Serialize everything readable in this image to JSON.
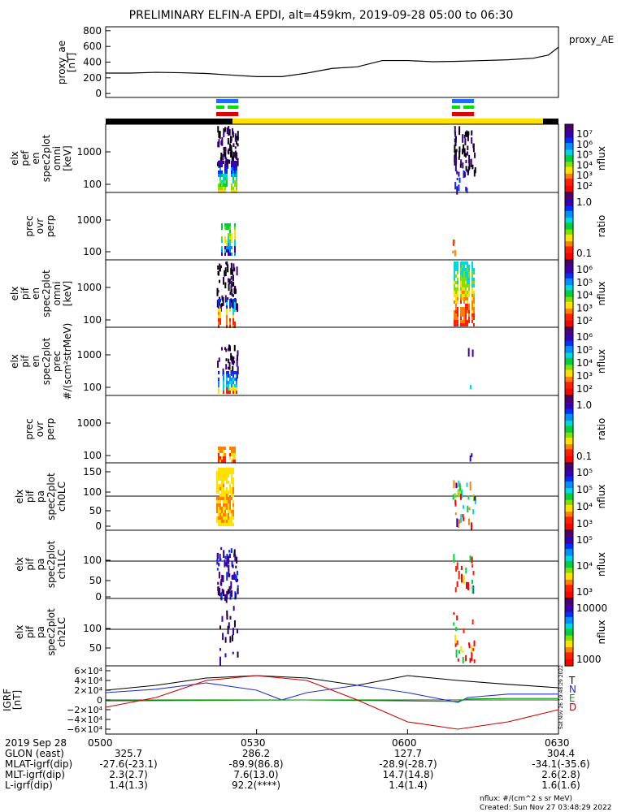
{
  "title": "PRELIMINARY ELFIN-A EPDI, alt=459km, 2019-09-28 05:00 to 06:30",
  "colors": {
    "yellow": "#ffe000",
    "blue": "#1e6cff",
    "green": "#00e000",
    "red": "#e00000",
    "black": "#000000"
  },
  "chart_data": [
    {
      "type": "line",
      "panel": "proxy_ae",
      "ylabel_lines": [
        "proxy_ae",
        "[nT]"
      ],
      "legend": "proxy_AE",
      "yticks": [
        "800",
        "600",
        "400",
        "200",
        "0"
      ],
      "ylim": [
        -50,
        850
      ],
      "xlim": [
        0,
        90
      ],
      "series": [
        {
          "x": [
            0,
            5,
            10,
            15,
            20,
            25,
            30,
            35,
            40,
            45,
            50,
            55,
            60,
            65,
            70,
            75,
            80,
            85,
            88,
            90
          ],
          "values": [
            260,
            260,
            270,
            265,
            255,
            235,
            215,
            215,
            260,
            320,
            340,
            420,
            420,
            405,
            410,
            420,
            430,
            450,
            490,
            590
          ]
        }
      ]
    },
    {
      "type": "heatmap",
      "panel": "elx_pef_en_spec2plot_omni",
      "ylabel_lines": [
        "elx",
        "pef",
        "en",
        "spec2plot",
        "omni",
        "[keV]"
      ],
      "yticks": [
        "1000",
        "100"
      ],
      "colorbar": {
        "label": "nflux",
        "ticks": [
          "10⁷",
          "10⁶",
          "10⁵",
          "10⁴",
          "10³",
          "10²"
        ]
      }
    },
    {
      "type": "heatmap",
      "panel": "prec_ovr_perp_e",
      "ylabel_lines": [
        "prec",
        "ovr",
        "perp"
      ],
      "yticks": [
        "1000",
        "100"
      ],
      "colorbar": {
        "label": "ratio",
        "ticks": [
          "1.0",
          "0.1"
        ]
      }
    },
    {
      "type": "heatmap",
      "panel": "elx_pif_en_spec2plot_omni",
      "ylabel_lines": [
        "elx",
        "pif",
        "en",
        "spec2plot",
        "omni",
        "[keV]"
      ],
      "yticks": [
        "1000",
        "100"
      ],
      "colorbar": {
        "label": "nflux",
        "ticks": [
          "10⁶",
          "10⁵",
          "10⁴",
          "10³",
          "10²"
        ]
      }
    },
    {
      "type": "heatmap",
      "panel": "elx_pif_en_spec2plot_prec",
      "ylabel_lines": [
        "elx",
        "pif",
        "en",
        "spec2plot",
        "prec",
        "#/(scm²strMeV)"
      ],
      "yticks": [
        "1000",
        "100"
      ],
      "colorbar": {
        "label": "nflux",
        "ticks": [
          "10⁶",
          "10⁵",
          "10⁴",
          "10³",
          "10²"
        ]
      }
    },
    {
      "type": "heatmap",
      "panel": "prec_ovr_perp_i",
      "ylabel_lines": [
        "prec",
        "ovr",
        "perp"
      ],
      "yticks": [
        "1000",
        "100"
      ],
      "colorbar": {
        "label": "ratio",
        "ticks": [
          "1.0",
          "0.1"
        ]
      }
    },
    {
      "type": "heatmap",
      "panel": "elx_pif_pa_spec2plot_ch0LC",
      "ylabel_lines": [
        "elx",
        "pif",
        "pa",
        "spec2plot",
        "ch0LC"
      ],
      "yticks": [
        "150",
        "100",
        "50",
        "0"
      ],
      "colorbar": {
        "label": "nflux",
        "ticks": [
          "10⁵",
          "10⁵",
          "10⁴",
          "10³"
        ]
      }
    },
    {
      "type": "heatmap",
      "panel": "elx_pif_pa_spec2plot_ch1LC",
      "ylabel_lines": [
        "elx",
        "pif",
        "pa",
        "spec2plot",
        "ch1LC"
      ],
      "yticks": [
        "100",
        "50",
        "0"
      ],
      "colorbar": {
        "label": "nflux",
        "ticks": [
          "10⁵",
          "10⁴",
          "10³"
        ]
      }
    },
    {
      "type": "heatmap",
      "panel": "elx_pif_pa_spec2plot_ch2LC",
      "ylabel_lines": [
        "elx",
        "pif",
        "pa",
        "spec2plot",
        "ch2LC"
      ],
      "yticks": [
        "100",
        "50"
      ],
      "colorbar": {
        "label": "nflux",
        "ticks": [
          "10000",
          "1000"
        ]
      }
    },
    {
      "type": "line",
      "panel": "IGRF",
      "ylabel_lines": [
        "IGRF",
        "[nT]"
      ],
      "yticks": [
        "6×10⁴",
        "4×10⁴",
        "2×10⁴",
        "0",
        "−2×10⁴",
        "−4×10⁴",
        "−6×10⁴"
      ],
      "ylim": [
        -70000,
        70000
      ],
      "xlim": [
        0,
        90
      ],
      "legend": [
        "T",
        "N",
        "E",
        "D"
      ],
      "series": [
        {
          "name": "T",
          "color": "#000000",
          "x": [
            0,
            10,
            20,
            30,
            40,
            50,
            55,
            60,
            65,
            70,
            80,
            90
          ],
          "values": [
            20000,
            30000,
            45000,
            50000,
            45000,
            30000,
            40000,
            50000,
            45000,
            40000,
            32000,
            25000
          ]
        },
        {
          "name": "N",
          "color": "#2030d0",
          "x": [
            0,
            10,
            20,
            30,
            35,
            40,
            50,
            60,
            65,
            70,
            72,
            80,
            90
          ],
          "values": [
            15000,
            22000,
            35000,
            20000,
            0,
            15000,
            30000,
            15000,
            5000,
            -5000,
            5000,
            12000,
            12000
          ]
        },
        {
          "name": "E",
          "color": "#00a000",
          "x": [
            0,
            20,
            40,
            60,
            70,
            72,
            80,
            90
          ],
          "values": [
            -2000,
            -1000,
            0,
            -2000,
            -3000,
            2000,
            3000,
            3000
          ]
        },
        {
          "name": "D",
          "color": "#d00000",
          "x": [
            0,
            10,
            20,
            30,
            40,
            50,
            60,
            70,
            80,
            90
          ],
          "values": [
            -15000,
            5000,
            40000,
            50000,
            40000,
            0,
            -45000,
            -60000,
            -45000,
            -20000
          ]
        }
      ]
    }
  ],
  "time_axis": {
    "ticks": [
      "0500",
      "0530",
      "0600",
      "0630"
    ],
    "rows": [
      {
        "label": "2019 Sep 28",
        "values": [
          "",
          "",
          "",
          ""
        ]
      },
      {
        "label": "GLON (east)",
        "values": [
          "325.7",
          "286.2",
          "127.7",
          "304.4"
        ]
      },
      {
        "label": "MLAT-igrf(dip)",
        "values": [
          "-27.6(-23.1)",
          "-89.9(86.8)",
          "-28.9(-28.7)",
          "-34.1(-35.6)"
        ]
      },
      {
        "label": "MLT-igrf(dip)",
        "values": [
          "2.3(2.7)",
          "7.6(13.0)",
          "14.7(14.8)",
          "2.6(2.8)"
        ]
      },
      {
        "label": "L-igrf(dip)",
        "values": [
          "1.4(1.3)",
          "92.2(****)",
          "1.4(1.4)",
          "1.6(1.6)"
        ]
      }
    ]
  },
  "footer": {
    "units": "nflux: #/(cm^2 s sr MeV)",
    "created": "Created: Sun Nov 27 03:48:29 2022",
    "side_stamp": "Sat Nov 26 19:48:29 2022"
  }
}
